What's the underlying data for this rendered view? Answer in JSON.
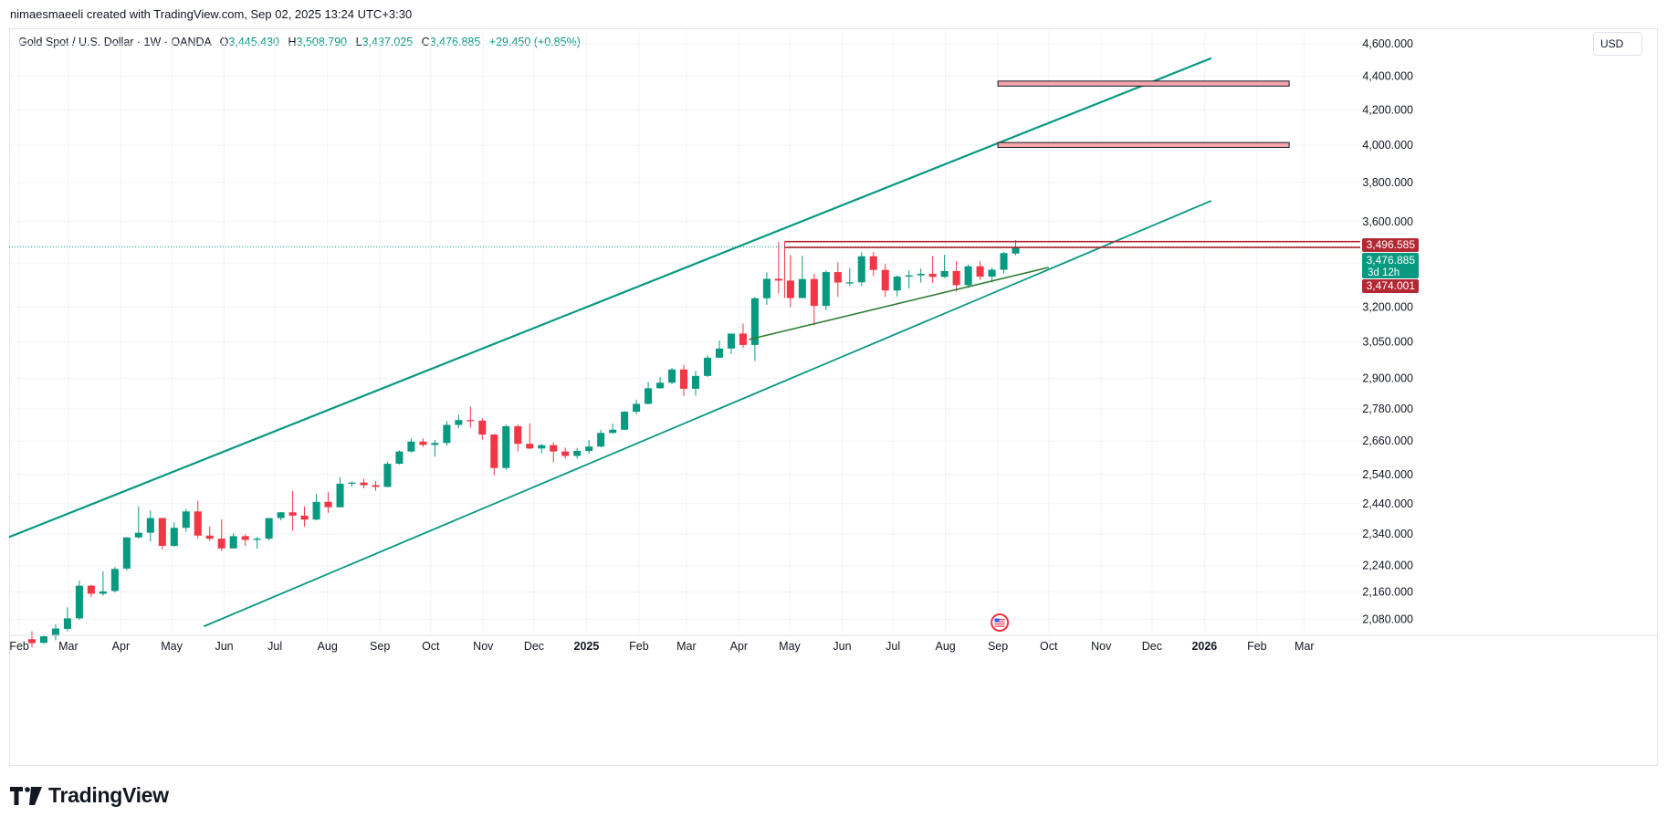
{
  "header": {
    "attribution": "nimaesmaeeli created with TradingView.com, Sep 02, 2025 13:24 UTC+3:30"
  },
  "legend": {
    "symbol": "Gold Spot / U.S. Dollar · 1W · OANDA",
    "open_label": "O",
    "open": "3,445.430",
    "high_label": "H",
    "high": "3,508.790",
    "low_label": "L",
    "low": "3,437.025",
    "close_label": "C",
    "close": "3,476.885",
    "change": "+29.450 (+0.85%)"
  },
  "currency_button": "USD",
  "branding": {
    "name": "TradingView"
  },
  "colors": {
    "up": "#089981",
    "down": "#f23645",
    "channel": "#089981",
    "trend": "#2e7d32",
    "zone": "#f7a6ab"
  },
  "price_tags": {
    "upper": {
      "value": "3,496.585",
      "color": "#b22833"
    },
    "current": {
      "value": "3,476.885",
      "countdown": "3d 12h",
      "color": "#089981"
    },
    "lower": {
      "value": "3,474.001",
      "color": "#b22833"
    }
  },
  "chart_data": {
    "type": "candlestick",
    "interval": "1W",
    "scale": "log",
    "y_range": [
      2040,
      4700
    ],
    "y_ticks": [
      2080,
      2160,
      2240,
      2340,
      2440,
      2540,
      2660,
      2780,
      2900,
      3050,
      3200,
      3400,
      3600,
      3800,
      4000,
      4200,
      4400,
      4600
    ],
    "y_tick_labels": [
      "2,080.000",
      "2,160.000",
      "2,240.000",
      "2,340.000",
      "2,440.000",
      "2,540.000",
      "2,660.000",
      "2,780.000",
      "2,900.000",
      "3,050.000",
      "3,200.000",
      "3,400.000",
      "3,600.000",
      "3,800.000",
      "4,000.000",
      "4,200.000",
      "4,400.000",
      "4,600.000"
    ],
    "x_range": [
      "2024-01-26",
      "2026-04-03"
    ],
    "x_ticks": [
      {
        "date": "2024-02-01",
        "label": "Feb"
      },
      {
        "date": "2024-03-01",
        "label": "Mar"
      },
      {
        "date": "2024-04-01",
        "label": "Apr"
      },
      {
        "date": "2024-05-01",
        "label": "May"
      },
      {
        "date": "2024-06-01",
        "label": "Jun"
      },
      {
        "date": "2024-07-01",
        "label": "Jul"
      },
      {
        "date": "2024-08-01",
        "label": "Aug"
      },
      {
        "date": "2024-09-01",
        "label": "Sep"
      },
      {
        "date": "2024-10-01",
        "label": "Oct"
      },
      {
        "date": "2024-11-01",
        "label": "Nov"
      },
      {
        "date": "2024-12-01",
        "label": "Dec"
      },
      {
        "date": "2025-01-01",
        "label": "2025",
        "bold": true
      },
      {
        "date": "2025-02-01",
        "label": "Feb"
      },
      {
        "date": "2025-03-01",
        "label": "Mar"
      },
      {
        "date": "2025-04-01",
        "label": "Apr"
      },
      {
        "date": "2025-05-01",
        "label": "May"
      },
      {
        "date": "2025-06-01",
        "label": "Jun"
      },
      {
        "date": "2025-07-01",
        "label": "Jul"
      },
      {
        "date": "2025-08-01",
        "label": "Aug"
      },
      {
        "date": "2025-09-01",
        "label": "Sep"
      },
      {
        "date": "2025-10-01",
        "label": "Oct"
      },
      {
        "date": "2025-11-01",
        "label": "Nov"
      },
      {
        "date": "2025-12-01",
        "label": "Dec"
      },
      {
        "date": "2026-01-01",
        "label": "2026",
        "bold": true
      },
      {
        "date": "2026-02-01",
        "label": "Feb"
      },
      {
        "date": "2026-03-01",
        "label": "Mar"
      }
    ],
    "candles_start": "2024-02-05",
    "candles_ohlc": [
      [
        2024,
        2046,
        2001,
        2013
      ],
      [
        2014,
        2035,
        2011,
        2032
      ],
      [
        2033,
        2066,
        2021,
        2054
      ],
      [
        2053,
        2115,
        2046,
        2083
      ],
      [
        2083,
        2195,
        2079,
        2179
      ],
      [
        2179,
        2182,
        2145,
        2155
      ],
      [
        2155,
        2223,
        2149,
        2162
      ],
      [
        2163,
        2236,
        2159,
        2230
      ],
      [
        2231,
        2330,
        2225,
        2329
      ],
      [
        2329,
        2431,
        2325,
        2344
      ],
      [
        2344,
        2417,
        2316,
        2392
      ],
      [
        2392,
        2393,
        2291,
        2302
      ],
      [
        2302,
        2378,
        2299,
        2360
      ],
      [
        2360,
        2422,
        2347,
        2414
      ],
      [
        2414,
        2450,
        2326,
        2335
      ],
      [
        2335,
        2364,
        2317,
        2325
      ],
      [
        2325,
        2388,
        2286,
        2294
      ],
      [
        2294,
        2342,
        2293,
        2333
      ],
      [
        2333,
        2339,
        2302,
        2321
      ],
      [
        2321,
        2331,
        2293,
        2325
      ],
      [
        2325,
        2392,
        2319,
        2392
      ],
      [
        2392,
        2412,
        2385,
        2411
      ],
      [
        2411,
        2483,
        2351,
        2400
      ],
      [
        2400,
        2431,
        2364,
        2387
      ],
      [
        2387,
        2474,
        2385,
        2446
      ],
      [
        2446,
        2479,
        2409,
        2428
      ],
      [
        2428,
        2531,
        2427,
        2508
      ],
      [
        2508,
        2516,
        2498,
        2512
      ],
      [
        2512,
        2525,
        2492,
        2503
      ],
      [
        2503,
        2517,
        2484,
        2497
      ],
      [
        2497,
        2586,
        2496,
        2578
      ],
      [
        2578,
        2626,
        2575,
        2622
      ],
      [
        2622,
        2670,
        2619,
        2658
      ],
      [
        2658,
        2670,
        2639,
        2646
      ],
      [
        2646,
        2664,
        2603,
        2653
      ],
      [
        2653,
        2734,
        2643,
        2720
      ],
      [
        2720,
        2759,
        2707,
        2738
      ],
      [
        2738,
        2790,
        2710,
        2736
      ],
      [
        2736,
        2745,
        2665,
        2684
      ],
      [
        2684,
        2686,
        2537,
        2563
      ],
      [
        2563,
        2721,
        2556,
        2715
      ],
      [
        2715,
        2722,
        2622,
        2650
      ],
      [
        2650,
        2726,
        2630,
        2633
      ],
      [
        2633,
        2650,
        2615,
        2645
      ],
      [
        2645,
        2656,
        2583,
        2622
      ],
      [
        2622,
        2636,
        2596,
        2606
      ],
      [
        2606,
        2635,
        2596,
        2624
      ],
      [
        2624,
        2664,
        2614,
        2640
      ],
      [
        2640,
        2702,
        2637,
        2690
      ],
      [
        2690,
        2725,
        2687,
        2702
      ],
      [
        2702,
        2772,
        2700,
        2770
      ],
      [
        2770,
        2817,
        2760,
        2800
      ],
      [
        2800,
        2886,
        2798,
        2861
      ],
      [
        2861,
        2905,
        2859,
        2883
      ],
      [
        2883,
        2942,
        2877,
        2936
      ],
      [
        2936,
        2955,
        2830,
        2859
      ],
      [
        2859,
        2930,
        2832,
        2910
      ],
      [
        2910,
        2994,
        2906,
        2984
      ],
      [
        2984,
        3056,
        2982,
        3022
      ],
      [
        3022,
        3057,
        2999,
        3085
      ],
      [
        3085,
        3128,
        3025,
        3037
      ],
      [
        3037,
        3245,
        2970,
        3239
      ],
      [
        3239,
        3357,
        3210,
        3327
      ],
      [
        3327,
        3500,
        3260,
        3319
      ],
      [
        3319,
        3438,
        3200,
        3240
      ],
      [
        3240,
        3435,
        3240,
        3326
      ],
      [
        3326,
        3350,
        3120,
        3205
      ],
      [
        3205,
        3366,
        3186,
        3358
      ],
      [
        3358,
        3403,
        3245,
        3310
      ],
      [
        3310,
        3376,
        3295,
        3311
      ],
      [
        3311,
        3451,
        3295,
        3432
      ],
      [
        3432,
        3452,
        3340,
        3368
      ],
      [
        3368,
        3396,
        3245,
        3274
      ],
      [
        3274,
        3343,
        3247,
        3337
      ],
      [
        3337,
        3366,
        3283,
        3343
      ],
      [
        3343,
        3374,
        3310,
        3350
      ],
      [
        3350,
        3433,
        3308,
        3336
      ],
      [
        3336,
        3439,
        3331,
        3363
      ],
      [
        3363,
        3409,
        3268,
        3298
      ],
      [
        3298,
        3393,
        3285,
        3385
      ],
      [
        3385,
        3409,
        3323,
        3337
      ],
      [
        3337,
        3379,
        3311,
        3369
      ],
      [
        3369,
        3453,
        3351,
        3447
      ],
      [
        3445,
        3509,
        3437,
        3477
      ]
    ],
    "drawings": {
      "channel_upper": [
        [
          "2024-01-26",
          2330
        ],
        [
          "2026-01-05",
          4510
        ]
      ],
      "channel_lower": [
        [
          "2024-05-20",
          2060
        ],
        [
          "2026-01-05",
          3705
        ]
      ],
      "support_trendline": [
        [
          "2025-04-07",
          3060
        ],
        [
          "2025-10-01",
          3380
        ]
      ],
      "resistance_lines": [
        3502,
        3474
      ],
      "resistance_start": "2025-04-28",
      "target_zones": [
        {
          "from": "2025-09-01",
          "to": "2026-02-20",
          "low": 4340,
          "high": 4370
        },
        {
          "from": "2025-09-01",
          "to": "2026-02-20",
          "low": 3988,
          "high": 4015
        }
      ]
    },
    "event_marker": {
      "date": "2025-09-01",
      "icon": "us-flag-event-icon"
    }
  }
}
